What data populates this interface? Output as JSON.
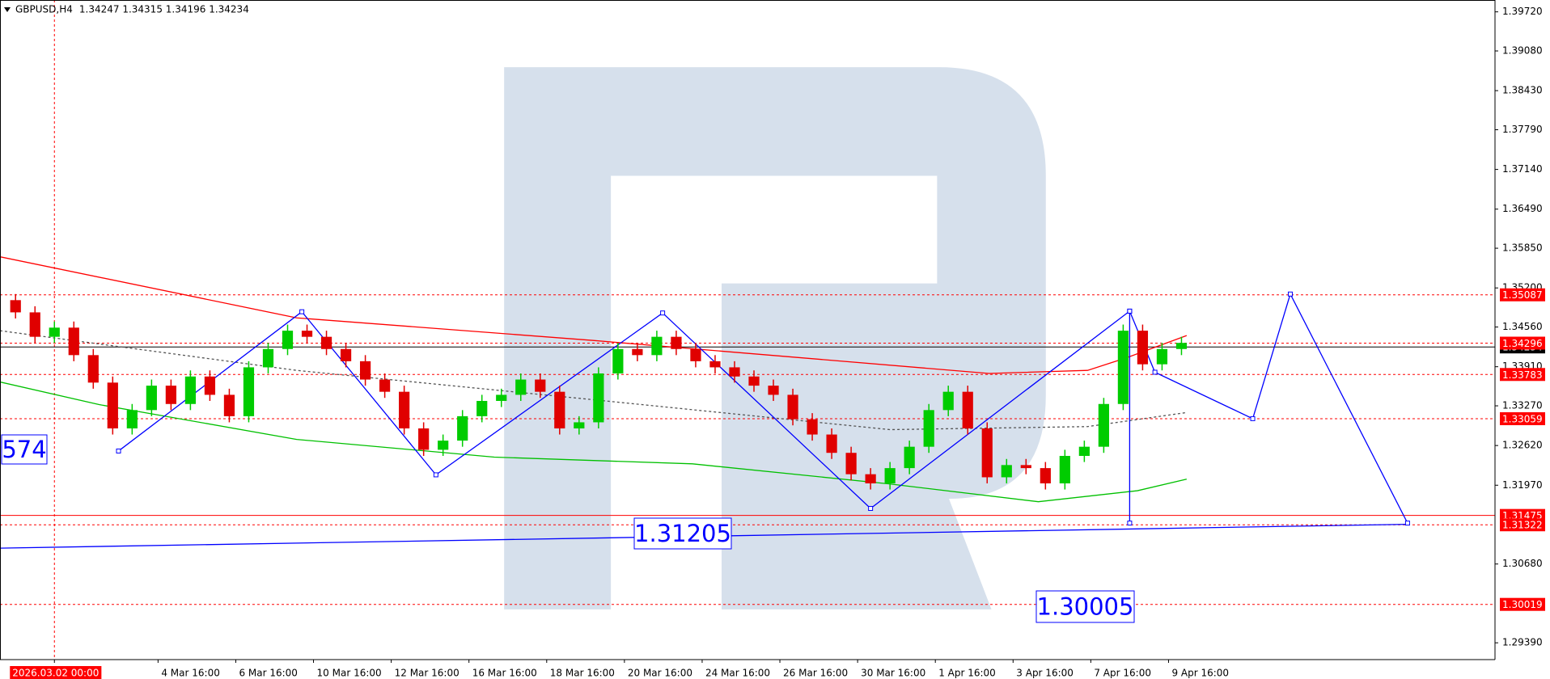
{
  "chart_data": {
    "type": "candlestick",
    "title": "GBPUSD,H4",
    "subtitle": "1.34247 1.34315 1.34196 1.34234",
    "bull_color": "#00cc00",
    "bear_color": "#e00000",
    "cursor_color": "#ff0000",
    "x": [
      -6,
      -3,
      0,
      3,
      6,
      9,
      12,
      15,
      18,
      21,
      24,
      27,
      30,
      33,
      36,
      39,
      42,
      45,
      48,
      51,
      54,
      57,
      60,
      63,
      66,
      69,
      72,
      75,
      78,
      81,
      84,
      87,
      90,
      93,
      96,
      99,
      102,
      105,
      108,
      111,
      114,
      117,
      120,
      123,
      126,
      129,
      132,
      135,
      138,
      141,
      144,
      147,
      150,
      153,
      156,
      159,
      162,
      165,
      168,
      171,
      174
    ],
    "open": [
      1.35,
      1.348,
      1.344,
      1.3455,
      1.341,
      1.3365,
      1.329,
      1.332,
      1.336,
      1.333,
      1.3375,
      1.3345,
      1.331,
      1.339,
      1.342,
      1.345,
      1.344,
      1.342,
      1.34,
      1.337,
      1.335,
      1.329,
      1.3255,
      1.327,
      1.331,
      1.3335,
      1.3345,
      1.337,
      1.335,
      1.329,
      1.33,
      1.338,
      1.342,
      1.341,
      1.344,
      1.342,
      1.34,
      1.339,
      1.3375,
      1.336,
      1.3345,
      1.3305,
      1.328,
      1.325,
      1.3215,
      1.32,
      1.3225,
      1.326,
      1.332,
      1.335,
      1.329,
      1.321,
      1.323,
      1.3225,
      1.32,
      1.3245,
      1.326,
      1.333,
      1.345,
      1.3395,
      1.342
    ],
    "high": [
      1.351,
      1.349,
      1.3465,
      1.3465,
      1.342,
      1.3375,
      1.333,
      1.337,
      1.337,
      1.3385,
      1.3385,
      1.3355,
      1.34,
      1.343,
      1.346,
      1.346,
      1.345,
      1.343,
      1.341,
      1.338,
      1.336,
      1.33,
      1.328,
      1.332,
      1.3345,
      1.3355,
      1.338,
      1.338,
      1.336,
      1.331,
      1.339,
      1.343,
      1.343,
      1.345,
      1.345,
      1.343,
      1.341,
      1.34,
      1.3385,
      1.337,
      1.3355,
      1.3315,
      1.329,
      1.326,
      1.3225,
      1.3235,
      1.327,
      1.333,
      1.336,
      1.336,
      1.33,
      1.324,
      1.324,
      1.3235,
      1.3255,
      1.327,
      1.334,
      1.346,
      1.346,
      1.343,
      1.344
    ],
    "low": [
      1.347,
      1.343,
      1.343,
      1.34,
      1.3355,
      1.328,
      1.328,
      1.331,
      1.332,
      1.332,
      1.3335,
      1.33,
      1.33,
      1.338,
      1.341,
      1.343,
      1.341,
      1.339,
      1.336,
      1.334,
      1.328,
      1.3245,
      1.3245,
      1.326,
      1.33,
      1.3325,
      1.3335,
      1.334,
      1.328,
      1.328,
      1.329,
      1.337,
      1.34,
      1.34,
      1.341,
      1.339,
      1.338,
      1.3365,
      1.335,
      1.3335,
      1.3295,
      1.327,
      1.324,
      1.3205,
      1.319,
      1.319,
      1.3215,
      1.325,
      1.331,
      1.328,
      1.32,
      1.32,
      1.3215,
      1.319,
      1.319,
      1.3235,
      1.325,
      1.332,
      1.3385,
      1.3385,
      1.341
    ],
    "close": [
      1.348,
      1.344,
      1.3455,
      1.341,
      1.3365,
      1.329,
      1.332,
      1.336,
      1.333,
      1.3375,
      1.3345,
      1.331,
      1.339,
      1.342,
      1.345,
      1.344,
      1.342,
      1.34,
      1.337,
      1.335,
      1.329,
      1.3255,
      1.327,
      1.331,
      1.3335,
      1.3345,
      1.337,
      1.335,
      1.329,
      1.33,
      1.338,
      1.342,
      1.341,
      1.344,
      1.342,
      1.34,
      1.339,
      1.3375,
      1.336,
      1.3345,
      1.3305,
      1.328,
      1.325,
      1.3215,
      1.32,
      1.3225,
      1.326,
      1.332,
      1.335,
      1.329,
      1.321,
      1.323,
      1.3225,
      1.32,
      1.3245,
      1.326,
      1.333,
      1.345,
      1.3395,
      1.342,
      1.343
    ],
    "overlays": [
      {
        "color": "#ff0000",
        "dash": false,
        "markers": false,
        "x": [
          -8.4,
          37.4,
          83.2,
          144.3,
          159.5,
          165.6,
          174.8
        ],
        "values": [
          1.3571,
          1.3471,
          1.3434,
          1.338,
          1.3385,
          1.3406,
          1.3442
        ]
      },
      {
        "color": "#00c000",
        "dash": false,
        "markers": false,
        "x": [
          -8.4,
          6.9,
          37.4,
          67.9,
          98.5,
          129.0,
          151.9,
          167.2,
          174.8
        ],
        "values": [
          1.3366,
          1.3329,
          1.3272,
          1.3243,
          1.3232,
          1.3199,
          1.317,
          1.3188,
          1.3207
        ]
      },
      {
        "color": "#555555",
        "dash": true,
        "markers": false,
        "x": [
          -8.4,
          37.4,
          83.2,
          129.0,
          159.5,
          174.8
        ],
        "values": [
          1.345,
          1.3385,
          1.3337,
          1.3288,
          1.3293,
          1.3316
        ]
      },
      {
        "color": "#0000ff",
        "dash": false,
        "markers": false,
        "x": [
          -8.4,
          208.9
        ],
        "values": [
          1.3094,
          1.3133
        ]
      },
      {
        "color": "#0000ff",
        "dash": false,
        "markers": true,
        "x": [
          9.9,
          38.2,
          58.9,
          93.9,
          126.0,
          166.0,
          169.9,
          185.0,
          190.8,
          208.9
        ],
        "values": [
          1.3253,
          1.3481,
          1.3214,
          1.3479,
          1.3159,
          1.3482,
          1.3382,
          1.3306,
          1.351,
          1.3135
        ]
      },
      {
        "color": "#0000ff",
        "dash": false,
        "markers": true,
        "x": [
          166.0,
          166.0
        ],
        "values": [
          1.3482,
          1.3135
        ]
      }
    ],
    "levels": [
      {
        "value": 1.34234,
        "color": "#000000"
      },
      {
        "value": 1.35087,
        "color": "#ff0000"
      },
      {
        "value": 1.34296,
        "color": "#ff0000"
      },
      {
        "value": 1.33783,
        "color": "#ff0000"
      },
      {
        "value": 1.33059,
        "color": "#ff0000"
      },
      {
        "value": 1.31475,
        "color": "#ff0000"
      },
      {
        "value": 1.31322,
        "color": "#ff0000"
      },
      {
        "value": 1.30019,
        "color": "#ff0000"
      }
    ],
    "annotations": [
      "574",
      1.31205,
      1.30005
    ],
    "xlim": [
      -8.4,
      222.4
    ],
    "xticks": [
      {
        "value": 0,
        "label": "2026.03.02 00:00"
      },
      {
        "value": 16,
        "label": "4 Mar 16:00"
      },
      {
        "value": 28,
        "label": "6 Mar 16:00"
      },
      {
        "value": 40,
        "label": "10 Mar 16:00"
      },
      {
        "value": 52,
        "label": "12 Mar 16:00"
      },
      {
        "value": 64,
        "label": "16 Mar 16:00"
      },
      {
        "value": 76,
        "label": "18 Mar 16:00"
      },
      {
        "value": 88,
        "label": "20 Mar 16:00"
      },
      {
        "value": 100,
        "label": "24 Mar 16:00"
      },
      {
        "value": 112,
        "label": "26 Mar 16:00"
      },
      {
        "value": 124,
        "label": "30 Mar 16:00"
      },
      {
        "value": 136,
        "label": "1 Apr 16:00"
      },
      {
        "value": 148,
        "label": "3 Apr 16:00"
      },
      {
        "value": 160,
        "label": "7 Apr 16:00"
      },
      {
        "value": 172,
        "label": "9 Apr 16:00"
      }
    ],
    "ylim": [
      1.29115,
      1.39914
    ],
    "yticks": [
      {
        "value": 1.3972,
        "label": "1.39720"
      },
      {
        "value": 1.3908,
        "label": "1.39080"
      },
      {
        "value": 1.3843,
        "label": "1.38430"
      },
      {
        "value": 1.3779,
        "label": "1.37790"
      },
      {
        "value": 1.3714,
        "label": "1.37140"
      },
      {
        "value": 1.3649,
        "label": "1.36490"
      },
      {
        "value": 1.3585,
        "label": "1.35850"
      },
      {
        "value": 1.352,
        "label": "1.35200"
      },
      {
        "value": 1.3456,
        "label": "1.34560"
      },
      {
        "value": 1.3391,
        "label": "1.33910"
      },
      {
        "value": 1.3327,
        "label": "1.33270"
      },
      {
        "value": 1.3262,
        "label": "1.32620"
      },
      {
        "value": 1.3197,
        "label": "1.31970"
      },
      {
        "value": 1.3068,
        "label": "1.30680"
      },
      {
        "value": 1.2939,
        "label": "1.29390"
      }
    ]
  }
}
